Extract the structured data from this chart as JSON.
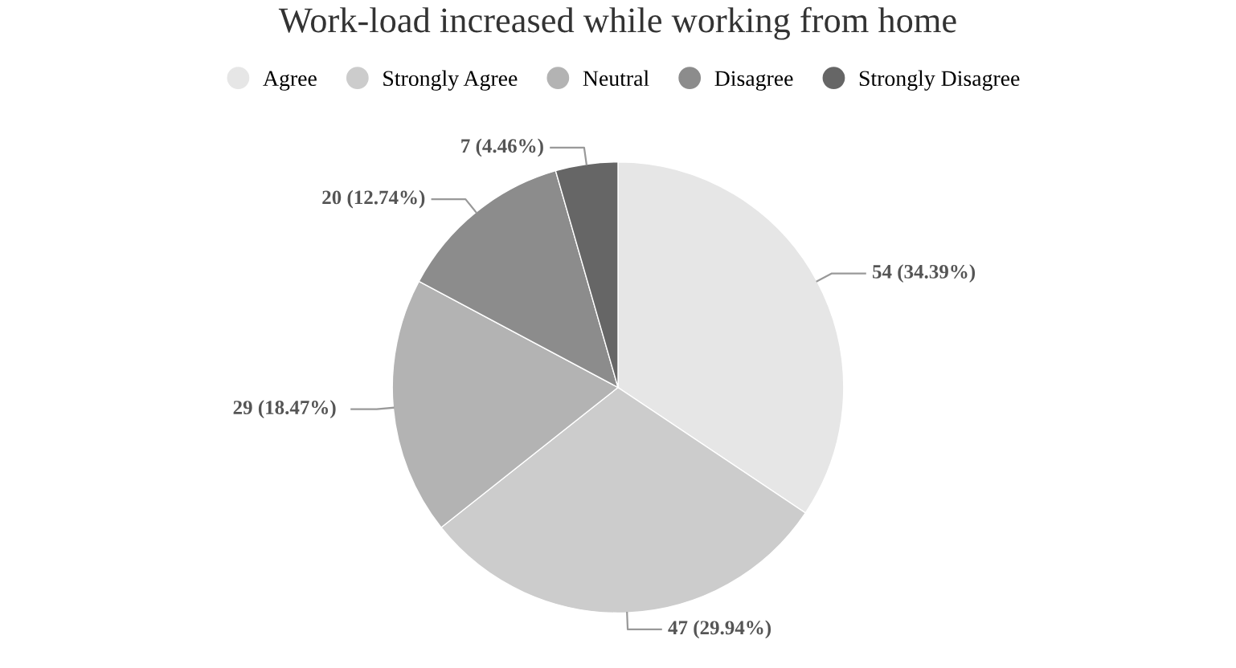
{
  "chart_data": {
    "type": "pie",
    "title": "Work-load increased while working from home",
    "categories": [
      "Agree",
      "Strongly Agree",
      "Neutral",
      "Disagree",
      "Strongly Disagree"
    ],
    "values": [
      54,
      47,
      29,
      20,
      7
    ],
    "colors": [
      "#e6e6e6",
      "#cccccc",
      "#b3b3b3",
      "#8c8c8c",
      "#666666"
    ],
    "value_labels": [
      "54 (34.39%)",
      "47 (29.94%)",
      "29 (18.47%)",
      "20 (12.74%)",
      "7 (4.46%)"
    ],
    "legend": "top"
  }
}
